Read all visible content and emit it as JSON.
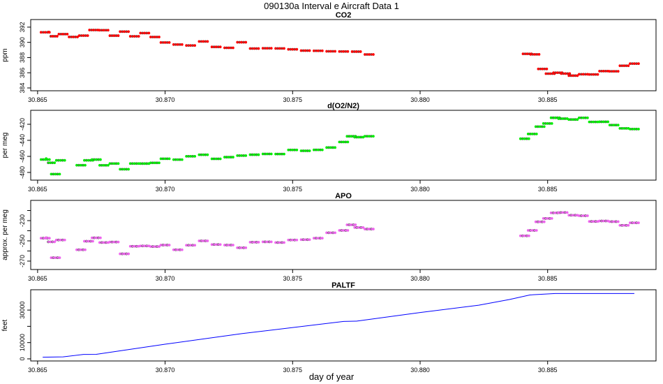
{
  "chart_data": [
    {
      "type": "scatter",
      "title": "CO2",
      "ylabel": "ppm",
      "ylim": [
        383.63,
        393.0
      ],
      "yticks": [
        384,
        386,
        388,
        390,
        392
      ],
      "ytick_labels": [
        "384",
        "386",
        "388",
        "390",
        "392"
      ],
      "color": "#ff0000",
      "x": [
        30.8653,
        30.8656,
        30.866,
        30.8664,
        30.8668,
        30.8672,
        30.8676,
        30.868,
        30.8684,
        30.8688,
        30.8692,
        30.8696,
        30.87,
        30.8705,
        30.871,
        30.8715,
        30.872,
        30.8725,
        30.873,
        30.8735,
        30.874,
        30.8745,
        30.875,
        30.8755,
        30.876,
        30.8765,
        30.877,
        30.8775,
        30.878,
        30.8842,
        30.8845,
        30.8848,
        30.8851,
        30.8854,
        30.8857,
        30.886,
        30.8864,
        30.8868,
        30.8872,
        30.8876,
        30.888,
        30.8884
      ],
      "y": [
        391.1,
        390.8,
        391.3,
        390.6,
        391.0,
        391.4,
        391.6,
        391.1,
        391.3,
        390.9,
        391.0,
        390.7,
        390.2,
        389.6,
        389.7,
        389.9,
        389.4,
        389.5,
        389.9,
        389.3,
        389.0,
        389.2,
        389.3,
        388.8,
        389.0,
        388.6,
        388.8,
        389.0,
        388.3,
        388.6,
        388.2,
        386.5,
        386.1,
        385.9,
        386.0,
        385.4,
        385.8,
        386.0,
        386.1,
        386.3,
        386.7,
        387.2
      ]
    },
    {
      "type": "scatter",
      "title": "d(O2/N2)",
      "ylabel": "per meg",
      "ylim": [
        -489.6,
        -402.6
      ],
      "yticks": [
        -480,
        -460,
        -440,
        -420
      ],
      "ytick_labels": [
        "-480",
        "-460",
        "-440",
        "-420"
      ],
      "color": "#00ee00",
      "x": [
        30.8653,
        30.8655,
        30.8657,
        30.8659,
        30.8667,
        30.867,
        30.8673,
        30.8676,
        30.868,
        30.8684,
        30.8688,
        30.8692,
        30.8696,
        30.87,
        30.8705,
        30.871,
        30.8715,
        30.872,
        30.8725,
        30.873,
        30.8735,
        30.874,
        30.8745,
        30.875,
        30.8755,
        30.876,
        30.8765,
        30.877,
        30.8773,
        30.8776,
        30.878,
        30.8841,
        30.8844,
        30.8847,
        30.885,
        30.8853,
        30.8856,
        30.886,
        30.8864,
        30.8868,
        30.8872,
        30.8876,
        30.888,
        30.8884
      ],
      "y": [
        -466,
        -468,
        -480,
        -466,
        -470,
        -467,
        -464,
        -469,
        -470,
        -475,
        -471,
        -469,
        -466,
        -464,
        -463,
        -462,
        -458,
        -461,
        -462,
        -458,
        -460,
        -457,
        -455,
        -453,
        -452,
        -454,
        -449,
        -440,
        -436,
        -435,
        -437,
        -438,
        -430,
        -424,
        -418,
        -414,
        -413,
        -412,
        -413,
        -416,
        -419,
        -421,
        -423,
        -427
      ]
    },
    {
      "type": "scatter",
      "title": "APO",
      "ylabel": "approx. per meg",
      "ylim": [
        -278.3,
        -210
      ],
      "yticks": [
        -270,
        -260,
        -250,
        -240,
        -230,
        -220
      ],
      "ytick_labels": [
        "-270",
        "",
        "-250",
        "",
        "-230",
        ""
      ],
      "color": "#ee66ee",
      "x": [
        30.8653,
        30.8655,
        30.8657,
        30.8659,
        30.8667,
        30.867,
        30.8673,
        30.8676,
        30.868,
        30.8684,
        30.8688,
        30.8692,
        30.8696,
        30.87,
        30.8705,
        30.871,
        30.8715,
        30.872,
        30.8725,
        30.873,
        30.8735,
        30.874,
        30.8745,
        30.875,
        30.8755,
        30.876,
        30.8765,
        30.877,
        30.8773,
        30.8776,
        30.878,
        30.8841,
        30.8844,
        30.8847,
        30.885,
        30.8853,
        30.8856,
        30.886,
        30.8864,
        30.8868,
        30.8872,
        30.8876,
        30.888,
        30.8884
      ],
      "y": [
        -249,
        -251,
        -265,
        -250,
        -258,
        -252,
        -247,
        -250,
        -252,
        -262,
        -257,
        -255,
        -254,
        -255,
        -258,
        -256,
        -250,
        -252,
        -255,
        -256,
        -253,
        -251,
        -250,
        -250,
        -248,
        -249,
        -242,
        -238,
        -235,
        -236,
        -240,
        -245,
        -238,
        -232,
        -227,
        -224,
        -222,
        -223,
        -226,
        -230,
        -232,
        -231,
        -233,
        -233
      ]
    },
    {
      "type": "line",
      "title": "PALTF",
      "ylabel": "feet",
      "ylim": [
        -1300,
        42500
      ],
      "yticks": [
        0,
        10000,
        20000,
        30000
      ],
      "ytick_labels": [
        "0",
        "10000",
        "",
        "30000"
      ],
      "color": "#0000ff",
      "x": [
        30.8652,
        30.866,
        30.8668,
        30.8673,
        30.87,
        30.873,
        30.877,
        30.8775,
        30.88,
        30.8823,
        30.8835,
        30.8843,
        30.8853,
        30.8884
      ],
      "y": [
        1000,
        1200,
        2700,
        2800,
        9000,
        15500,
        23000,
        23200,
        28500,
        33000,
        36500,
        39300,
        40200,
        40200
      ]
    }
  ],
  "figure_title": "090130a   Interval e Aircraft Data 1",
  "xlabel": "day of year",
  "xlim": [
    30.86473,
    30.88925
  ],
  "xticks": [
    30.865,
    30.87,
    30.875,
    30.88,
    30.885
  ],
  "xtick_labels": [
    "30.865",
    "30.870",
    "30.875",
    "30.880",
    "30.885"
  ]
}
